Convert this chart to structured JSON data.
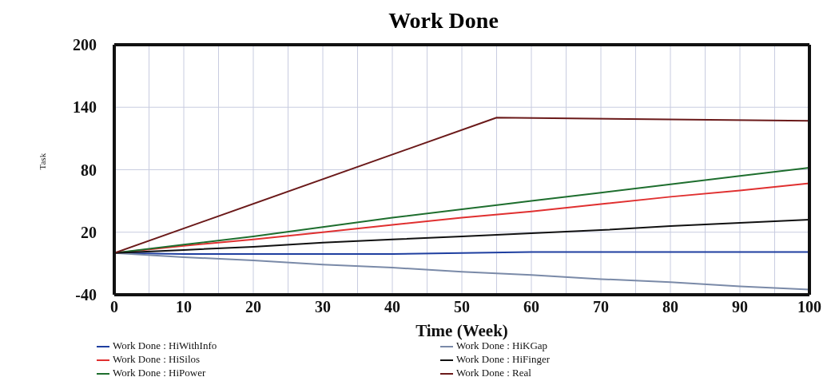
{
  "chart_data": {
    "type": "line",
    "title": "Work Done",
    "xlabel": "Time (Week)",
    "ylabel": "Task",
    "x": [
      0,
      10,
      20,
      30,
      40,
      50,
      60,
      70,
      80,
      90,
      100
    ],
    "xlim": [
      0,
      100
    ],
    "ylim": [
      -40,
      200
    ],
    "xticks": [
      0,
      {
        "value": 5,
        "label": null
      },
      10,
      {
        "value": 15,
        "label": null
      },
      20,
      {
        "value": 25,
        "label": null
      },
      30,
      {
        "value": 35,
        "label": null
      },
      40,
      {
        "value": 45,
        "label": null
      },
      50,
      {
        "value": 55,
        "label": null
      },
      60,
      {
        "value": 65,
        "label": null
      },
      70,
      {
        "value": 75,
        "label": null
      },
      80,
      {
        "value": 85,
        "label": null
      },
      90,
      {
        "value": 95,
        "label": null
      },
      100
    ],
    "yticks": [
      -40,
      20,
      80,
      140,
      200
    ],
    "grid": true,
    "legend": "bottom",
    "marker": "none",
    "line_style": "solid",
    "series": [
      {
        "name": "Work Done : HiWithInfo",
        "color": "#1f3fa0",
        "values": [
          0,
          -1,
          -1,
          -1,
          -1,
          0,
          1,
          1,
          1,
          1,
          1
        ]
      },
      {
        "name": "Work Done : HiSilos",
        "color": "#e03030",
        "values": [
          0,
          7,
          13,
          20,
          27,
          34,
          40,
          47,
          54,
          60,
          67
        ]
      },
      {
        "name": "Work Done : HiPower",
        "color": "#1e6e2e",
        "values": [
          0,
          8,
          16,
          25,
          34,
          42,
          50,
          58,
          66,
          74,
          82
        ]
      },
      {
        "name": "Work Done : HiKGap",
        "color": "#7a8aa8",
        "values": [
          0,
          -4,
          -7,
          -11,
          -14,
          -18,
          -21,
          -25,
          -28,
          -32,
          -35
        ]
      },
      {
        "name": "Work Done : HiFinger",
        "color": "#111111",
        "values": [
          0,
          3,
          6,
          10,
          13,
          16,
          19,
          22,
          26,
          29,
          32
        ]
      },
      {
        "name": "Work Done : Real",
        "color": "#6b1a1a",
        "x": [
          0,
          55,
          100
        ],
        "values": [
          0,
          130,
          127
        ]
      }
    ]
  }
}
